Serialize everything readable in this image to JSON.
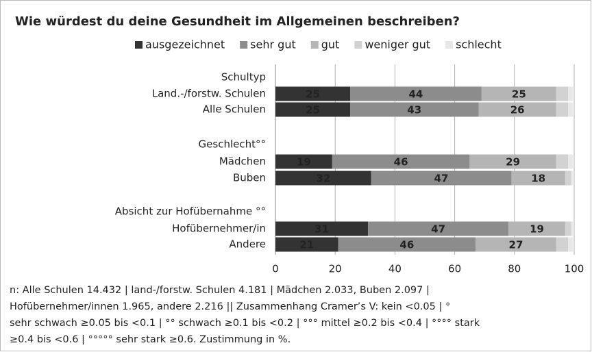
{
  "chart_data": {
    "type": "stacked_bar_horizontal",
    "title": "Wie würdest du deine Gesundheit im Allgemeinen beschreiben?",
    "categories": [
      "Schultyp",
      "Land.-/forstw. Schulen",
      "Alle Schulen",
      "Geschlecht°°",
      "Mädchen",
      "Buben",
      "Absicht zur Hofübernahme °°",
      "Hofübernehmer/in",
      "Andere"
    ],
    "series": [
      {
        "name": "ausgezeichnet",
        "color": "#333333",
        "label_color": "#ffffff",
        "show_labels": true,
        "values": [
          null,
          25,
          25,
          null,
          19,
          32,
          null,
          31,
          21
        ]
      },
      {
        "name": "sehr gut",
        "color": "#8c8c8c",
        "label_color": "#ffffff",
        "show_labels": true,
        "values": [
          null,
          44,
          43,
          null,
          46,
          47,
          null,
          47,
          46
        ]
      },
      {
        "name": "gut",
        "color": "#b5b5b5",
        "label_color": "#555555",
        "show_labels": true,
        "values": [
          null,
          25,
          26,
          null,
          29,
          18,
          null,
          19,
          27
        ]
      },
      {
        "name": "weniger gut",
        "color": "#d2d2d2",
        "label_color": "#555555",
        "show_labels": false,
        "values": [
          null,
          4,
          4,
          null,
          4,
          2,
          null,
          2,
          4
        ]
      },
      {
        "name": "schlecht",
        "color": "#e8e8e8",
        "label_color": "#555555",
        "show_labels": false,
        "values": [
          null,
          2,
          2,
          null,
          2,
          1,
          null,
          1,
          2
        ]
      }
    ],
    "xlim": [
      0,
      100
    ],
    "xticks": [
      0,
      20,
      40,
      60,
      80,
      100
    ],
    "grid": true,
    "legend": "top",
    "note": [
      "n: Alle Schulen 14.432 | land-/forstw. Schulen 4.181 | Mädchen 2.033, Buben 2.097 |",
      "Hofübernehmer/innen 1.965, andere 2.216 || Zusammenhang Cramer’s V: kein <0.05 | °",
      "sehr schwach ≥0.05 bis <0.1 | °° schwach ≥0.1 bis <0.2 | °°° mittel ≥0.2 bis <0.4 | °°°° stark",
      "≥0.4 bis <0.6 | °°°°° sehr stark ≥0.6. Zustimmung in %."
    ]
  }
}
